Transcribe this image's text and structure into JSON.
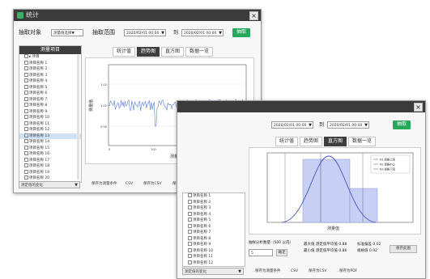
{
  "window1": {
    "title": "统计",
    "close_icon": "×",
    "field_label": "抽取对象",
    "field_value": "测量值选择▼",
    "range_label": "抽取范围",
    "range_from": "2020/02/01 00:00",
    "range_sep": "到",
    "range_to": "2020/02/01 00:00",
    "apply_button": "抽取",
    "tree_header": "测量项目",
    "tree_items": [
      "▸ 项目",
      "项目名称 1",
      "项目名称 2",
      "项目名称 3",
      "项目名称 4",
      "项目名称 5",
      "项目名称 6",
      "项目名称 7",
      "项目名称 8",
      "项目名称 9",
      "项目名称 10",
      "项目名称 11",
      "项目名称 12",
      "项目名称 13",
      "项目名称 14",
      "项目名称 15",
      "项目名称 16",
      "项目名称 17",
      "项目名称 18",
      "项目名称 19",
      "项目名称 20",
      "项目名称 21",
      "项目名称 22",
      "项目名称 23",
      "项目名称 24",
      "项目名称 25",
      "项目名称 26",
      "项目名称 27",
      "项目名称 28",
      "项目名称 29"
    ],
    "selected_index": 13,
    "tabs": [
      "统计值",
      "趋势图",
      "直方图",
      "数据一览"
    ],
    "active_tab": 1,
    "ylabel": "测量值",
    "xlabel": "测量数",
    "y_ticks": [
      "1.02",
      "1.00",
      "0.98"
    ],
    "x_ticks": [
      "0",
      "100",
      "200",
      "300"
    ],
    "export_button": "保存此图",
    "bottom_combo": "测定值的变化",
    "footer_links": [
      "保存为测量条件",
      "CSV",
      "保存为CSV",
      "保存为PDF"
    ]
  },
  "window2": {
    "close_icon": "×",
    "range_from": "2020/02/01 00:00",
    "range_sep": "到",
    "range_to": "2020/02/01 00:00",
    "apply_button": "抽取",
    "tree_items": [
      "项目名称 1",
      "项目名称 2",
      "项目名称 3",
      "项目名称 4",
      "项目名称 5",
      "项目名称 6",
      "项目名称 7",
      "项目名称 8",
      "项目名称 9",
      "项目名称 10",
      "项目名称 11",
      "项目名称 12"
    ],
    "tabs": [
      "统计值",
      "趋势图",
      "直方图",
      "数据一览"
    ],
    "active_tab": 2,
    "legend": [
      "N1 规格上限",
      "N2 规格中心",
      "N3 规格下限"
    ],
    "xlabel": "测量值",
    "param_label": "抽样分析数量（500 以内）",
    "param_value": "5",
    "param_button": "确定",
    "stats": [
      "最大值 测定值平均值 0.88",
      "最小值 测定值平均值 0.86",
      "标准偏差 0.02",
      "规格值 0.92"
    ],
    "export_button": "保存此图",
    "bottom_combo": "测定值的变化",
    "footer_links": [
      "保存为测量条件",
      "CSV",
      "保存为CSV",
      "保存为PDF"
    ]
  },
  "colors": {
    "titlebar": "#3b3b3b",
    "accent_green": "#26a75a",
    "trend_line": "#5b7fd0",
    "hist_fill": "#c7cff4",
    "curve": "#4050c8"
  }
}
